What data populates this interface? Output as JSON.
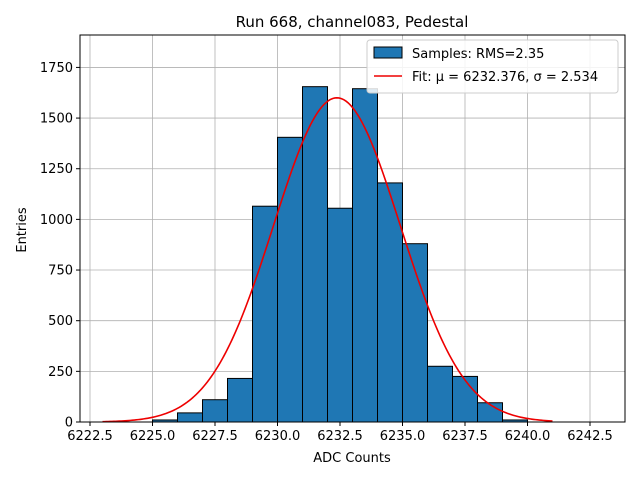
{
  "chart_data": {
    "type": "bar",
    "title": "Run 668, channel083, Pedestal",
    "xlabel": "ADC Counts",
    "ylabel": "Entries",
    "xlim": [
      6222.1,
      6243.9
    ],
    "ylim": [
      0,
      1910
    ],
    "xticks": [
      6222.5,
      6225.0,
      6227.5,
      6230.0,
      6232.5,
      6235.0,
      6237.5,
      6240.0,
      6242.5
    ],
    "xtick_labels": [
      "6222.5",
      "6225.0",
      "6227.5",
      "6230.0",
      "6232.5",
      "6235.0",
      "6237.5",
      "6240.0",
      "6242.5"
    ],
    "yticks": [
      0,
      250,
      500,
      750,
      1000,
      1250,
      1500,
      1750
    ],
    "ytick_labels": [
      "0",
      "250",
      "500",
      "750",
      "1000",
      "1250",
      "1500",
      "1750"
    ],
    "grid": true,
    "legend_position": "top-right",
    "bar_color": "#1f77b4",
    "fit_color": "#ee0000",
    "bins": [
      {
        "x0": 6225,
        "x1": 6226,
        "value": 10
      },
      {
        "x0": 6226,
        "x1": 6227,
        "value": 45
      },
      {
        "x0": 6227,
        "x1": 6228,
        "value": 110
      },
      {
        "x0": 6228,
        "x1": 6229,
        "value": 215
      },
      {
        "x0": 6229,
        "x1": 6230,
        "value": 1065
      },
      {
        "x0": 6230,
        "x1": 6231,
        "value": 1405
      },
      {
        "x0": 6231,
        "x1": 6232,
        "value": 1655
      },
      {
        "x0": 6232,
        "x1": 6233,
        "value": 1055
      },
      {
        "x0": 6233,
        "x1": 6234,
        "value": 1645
      },
      {
        "x0": 6234,
        "x1": 6235,
        "value": 1180
      },
      {
        "x0": 6235,
        "x1": 6236,
        "value": 880
      },
      {
        "x0": 6236,
        "x1": 6237,
        "value": 275
      },
      {
        "x0": 6237,
        "x1": 6238,
        "value": 225
      },
      {
        "x0": 6238,
        "x1": 6239,
        "value": 95
      },
      {
        "x0": 6239,
        "x1": 6240,
        "value": 10
      }
    ],
    "fit": {
      "mu": 6232.376,
      "sigma": 2.534,
      "amplitude": 1600,
      "x_range": [
        6223.0,
        6241.0
      ]
    },
    "legend": [
      {
        "label": "Samples: RMS=2.35",
        "kind": "bar"
      },
      {
        "label": "Fit: μ = 6232.376, σ = 2.534",
        "kind": "line"
      }
    ]
  }
}
